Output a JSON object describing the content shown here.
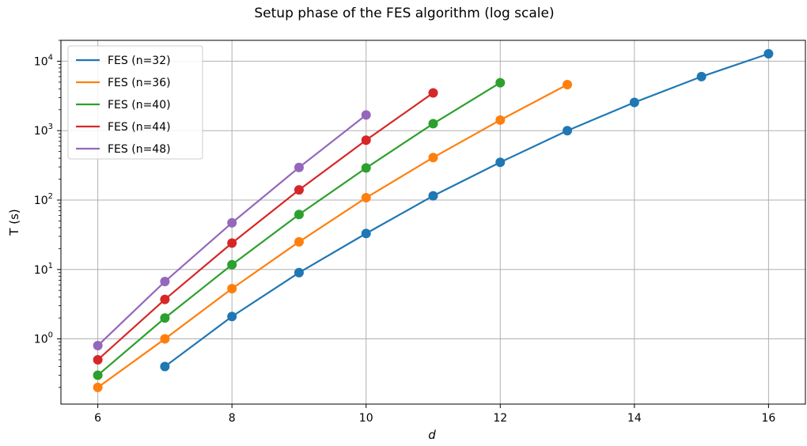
{
  "chart_data": {
    "type": "line",
    "title": "Setup phase of the FES algorithm (log scale)",
    "xlabel": "d",
    "ylabel": "T (s)",
    "xlim": [
      5.45,
      16.55
    ],
    "ylim": [
      0.115,
      20000
    ],
    "y_scale": "log",
    "grid": true,
    "legend_position": "top-left",
    "x_ticks": [
      6,
      8,
      10,
      12,
      14,
      16
    ],
    "y_ticks": [
      {
        "value": 1,
        "base": "10",
        "exp": "0"
      },
      {
        "value": 10,
        "base": "10",
        "exp": "1"
      },
      {
        "value": 100,
        "base": "10",
        "exp": "2"
      },
      {
        "value": 1000,
        "base": "10",
        "exp": "3"
      },
      {
        "value": 10000,
        "base": "10",
        "exp": "4"
      }
    ],
    "series": [
      {
        "name": "FES (n=32)",
        "color": "#1f77b4",
        "x": [
          7,
          8,
          9,
          10,
          11,
          12,
          13,
          14,
          15,
          16
        ],
        "y": [
          0.4,
          2.1,
          9,
          33,
          115,
          350,
          1000,
          2550,
          6000,
          12800
        ]
      },
      {
        "name": "FES (n=36)",
        "color": "#ff7f0e",
        "x": [
          6,
          7,
          8,
          9,
          10,
          11,
          12,
          13
        ],
        "y": [
          0.2,
          1.0,
          5.3,
          25,
          108,
          410,
          1420,
          4600
        ]
      },
      {
        "name": "FES (n=40)",
        "color": "#2ca02c",
        "x": [
          6,
          7,
          8,
          9,
          10,
          11,
          12
        ],
        "y": [
          0.3,
          2.0,
          11.7,
          62,
          290,
          1260,
          4900
        ]
      },
      {
        "name": "FES (n=44)",
        "color": "#d62728",
        "x": [
          6,
          7,
          8,
          9,
          10,
          11
        ],
        "y": [
          0.5,
          3.7,
          24,
          140,
          730,
          3500
        ]
      },
      {
        "name": "FES (n=48)",
        "color": "#9467bd",
        "x": [
          6,
          7,
          8,
          9,
          10
        ],
        "y": [
          0.8,
          6.7,
          47,
          295,
          1680
        ]
      }
    ]
  }
}
